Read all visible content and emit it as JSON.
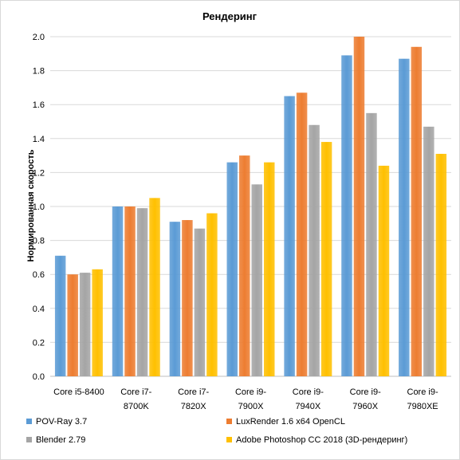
{
  "chart_data": {
    "type": "bar",
    "title": "Рендеринг",
    "xlabel": "",
    "ylabel": "Нормированная  скорость",
    "ylim": [
      0,
      2.0
    ],
    "yticks": [
      "0.0",
      "0.2",
      "0.4",
      "0.6",
      "0.8",
      "1.0",
      "1.2",
      "1.4",
      "1.6",
      "1.8",
      "2.0"
    ],
    "grid": true,
    "legend_position": "bottom",
    "categories": [
      [
        "Core i5-8400"
      ],
      [
        "Core i7-",
        "8700K"
      ],
      [
        "Core i7-",
        "7820X"
      ],
      [
        "Core i9-",
        "7900X"
      ],
      [
        "Core i9-",
        "7940X"
      ],
      [
        "Core i9-",
        "7960X"
      ],
      [
        "Core i9-",
        "7980XE"
      ]
    ],
    "series": [
      {
        "name": "POV-Ray 3.7",
        "color": "#5b9bd5",
        "values": [
          0.71,
          1.0,
          0.91,
          1.26,
          1.65,
          1.89,
          1.87
        ]
      },
      {
        "name": "LuxRender 1.6 x64 OpenCL",
        "color": "#ed7d31",
        "values": [
          0.6,
          1.0,
          0.92,
          1.3,
          1.67,
          2.0,
          1.94
        ]
      },
      {
        "name": "Blender 2.79",
        "color": "#a5a5a5",
        "values": [
          0.61,
          0.99,
          0.87,
          1.13,
          1.48,
          1.55,
          1.47
        ]
      },
      {
        "name": "Adobe Photoshop CC 2018 (3D-рендеринг)",
        "color": "#ffc000",
        "values": [
          0.63,
          1.05,
          0.96,
          1.26,
          1.38,
          1.24,
          1.31
        ]
      }
    ]
  }
}
